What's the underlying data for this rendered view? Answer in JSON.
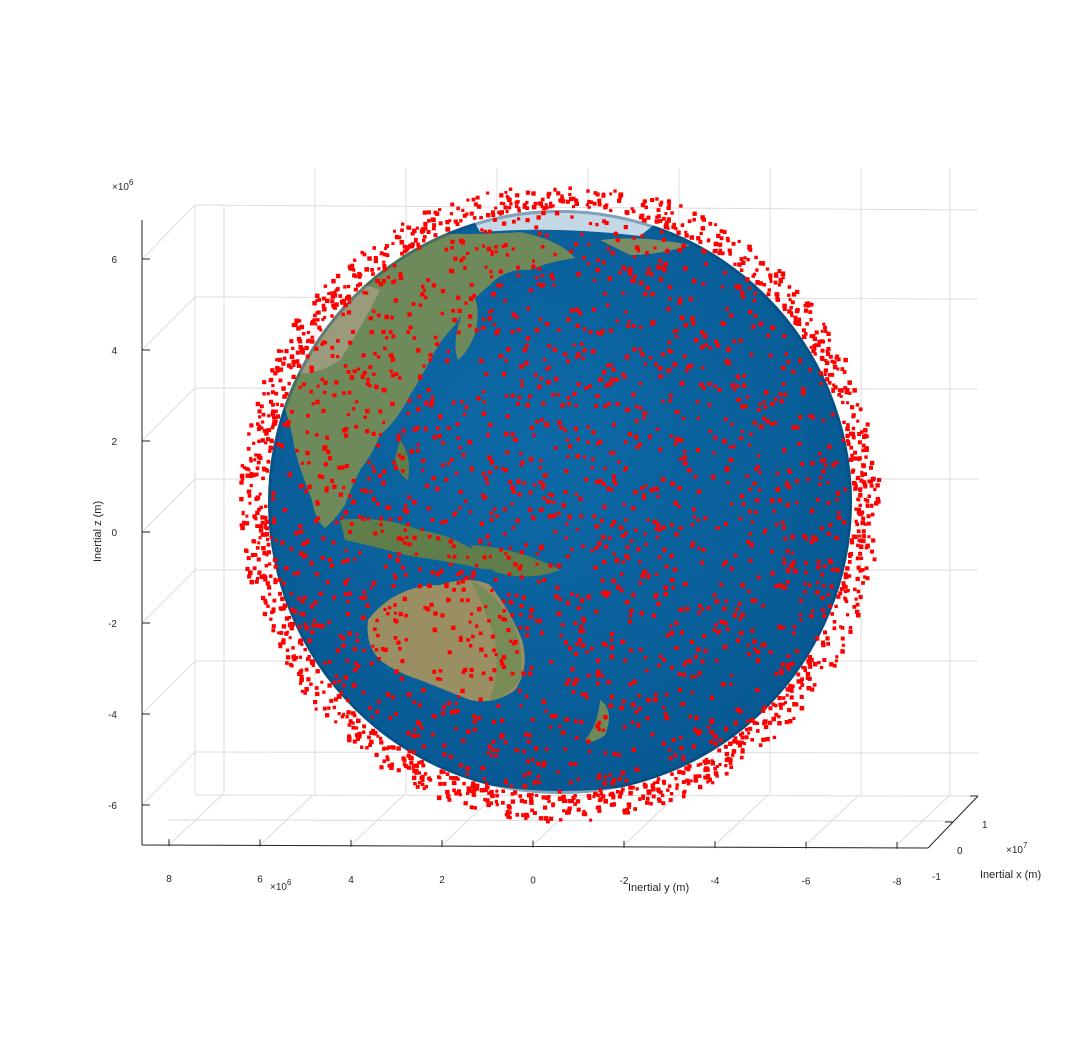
{
  "chart_data": {
    "type": "scatter",
    "projection": "3d",
    "xlabel": "Inertial x (m)",
    "ylabel": "Inertial y (m)",
    "zlabel": "Inertial z (m)",
    "x_exponent_label": "×10^7",
    "y_exponent_label": "×10^6",
    "z_exponent_label": "×10^6",
    "x_ticks": [
      "-1",
      "0",
      "1"
    ],
    "y_ticks": [
      "8",
      "6",
      "4",
      "2",
      "0",
      "-2",
      "-4",
      "-6",
      "-8"
    ],
    "z_ticks": [
      "6",
      "4",
      "2",
      "0",
      "-2",
      "-4",
      "-6"
    ],
    "xlim": [
      -1,
      1
    ],
    "ylim": [
      8.5,
      -8.5
    ],
    "zlim": [
      -7,
      7
    ],
    "grid": true,
    "background": "Earth globe (blue ocean, Asia and Australia visible)",
    "marker_color": "#ff0000",
    "ocean_color": "#0a5b92",
    "land_color": "#6f8a5a",
    "series": [
      {
        "marker": "filled square",
        "point_count_estimate": 3000,
        "description_points_sampled": [
          [
            0.2,
            2.0
          ],
          [
            -1.0,
            3.0
          ],
          [
            4.5,
            1.0
          ],
          [
            -3.5,
            -2.0
          ],
          [
            1.5,
            -4.0
          ],
          [
            -5.5,
            0.5
          ],
          [
            5.8,
            -0.5
          ],
          [
            -6.3,
            1.5
          ],
          [
            0.0,
            -6.2
          ],
          [
            2.0,
            6.0
          ],
          [
            -2.5,
            5.8
          ],
          [
            6.0,
            3.0
          ]
        ]
      }
    ]
  }
}
